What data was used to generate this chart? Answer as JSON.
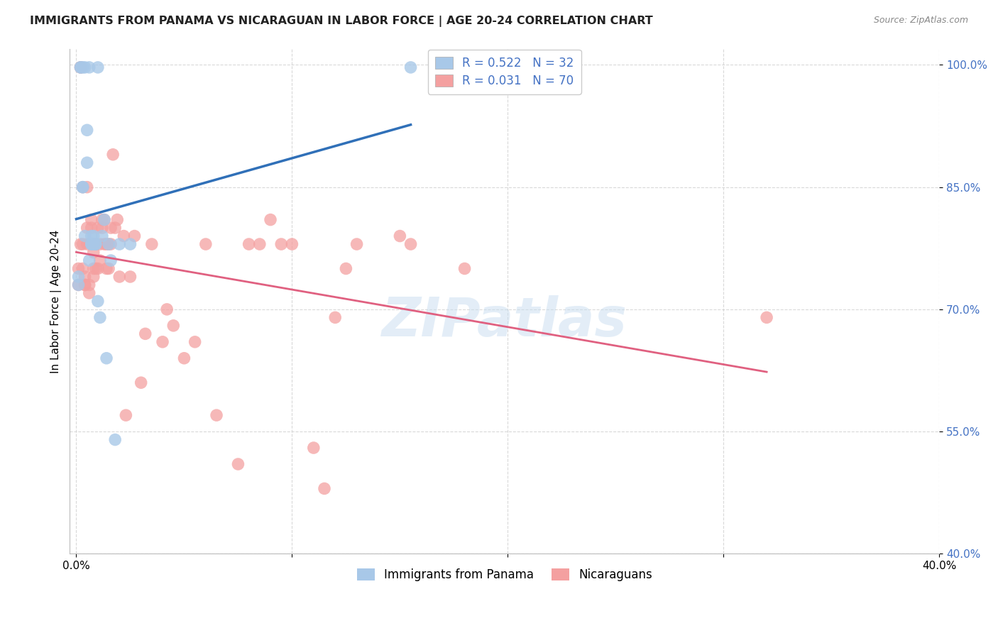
{
  "title": "IMMIGRANTS FROM PANAMA VS NICARAGUAN IN LABOR FORCE | AGE 20-24 CORRELATION CHART",
  "source": "Source: ZipAtlas.com",
  "ylabel": "In Labor Force | Age 20-24",
  "xlim": [
    -0.003,
    0.4
  ],
  "ylim": [
    0.4,
    1.02
  ],
  "yticks": [
    0.4,
    0.55,
    0.7,
    0.85,
    1.0
  ],
  "ytick_labels": [
    "40.0%",
    "55.0%",
    "70.0%",
    "85.0%",
    "100.0%"
  ],
  "xtick_positions": [
    0.0,
    0.1,
    0.2,
    0.3,
    0.4
  ],
  "xtick_labels": [
    "0.0%",
    "",
    "",
    "",
    "40.0%"
  ],
  "legend_panama": "Immigrants from Panama",
  "legend_nicaraguans": "Nicaraguans",
  "R_panama": 0.522,
  "N_panama": 32,
  "R_nicaraguan": 0.031,
  "N_nicaraguan": 70,
  "color_panama": "#a8c8e8",
  "color_nicaraguan": "#f4a0a0",
  "color_line_panama": "#3070b8",
  "color_line_nicaraguan": "#e06080",
  "watermark": "ZIPatlas",
  "panama_x": [
    0.001,
    0.001,
    0.002,
    0.002,
    0.003,
    0.003,
    0.003,
    0.004,
    0.004,
    0.005,
    0.005,
    0.006,
    0.006,
    0.007,
    0.007,
    0.007,
    0.008,
    0.008,
    0.009,
    0.009,
    0.01,
    0.01,
    0.011,
    0.012,
    0.013,
    0.014,
    0.015,
    0.016,
    0.018,
    0.02,
    0.025,
    0.155
  ],
  "panama_y": [
    0.73,
    0.74,
    0.997,
    0.997,
    0.85,
    0.85,
    0.997,
    0.997,
    0.79,
    0.92,
    0.88,
    0.76,
    0.997,
    0.79,
    0.78,
    0.78,
    0.79,
    0.78,
    0.78,
    0.78,
    0.997,
    0.71,
    0.69,
    0.79,
    0.81,
    0.64,
    0.78,
    0.76,
    0.54,
    0.78,
    0.78,
    0.997
  ],
  "nicaraguan_x": [
    0.001,
    0.001,
    0.002,
    0.002,
    0.002,
    0.003,
    0.003,
    0.003,
    0.004,
    0.004,
    0.004,
    0.005,
    0.005,
    0.005,
    0.006,
    0.006,
    0.007,
    0.007,
    0.008,
    0.008,
    0.008,
    0.009,
    0.009,
    0.01,
    0.01,
    0.011,
    0.011,
    0.012,
    0.012,
    0.013,
    0.013,
    0.014,
    0.014,
    0.015,
    0.015,
    0.016,
    0.016,
    0.017,
    0.018,
    0.019,
    0.02,
    0.022,
    0.023,
    0.025,
    0.027,
    0.03,
    0.032,
    0.035,
    0.04,
    0.042,
    0.045,
    0.05,
    0.055,
    0.06,
    0.065,
    0.075,
    0.08,
    0.085,
    0.09,
    0.095,
    0.1,
    0.11,
    0.115,
    0.12,
    0.125,
    0.13,
    0.15,
    0.18,
    0.32,
    0.155
  ],
  "nicaraguan_y": [
    0.73,
    0.75,
    0.997,
    0.997,
    0.78,
    0.85,
    0.78,
    0.75,
    0.74,
    0.73,
    0.73,
    0.85,
    0.8,
    0.78,
    0.73,
    0.72,
    0.81,
    0.8,
    0.77,
    0.75,
    0.74,
    0.78,
    0.75,
    0.8,
    0.75,
    0.78,
    0.76,
    0.81,
    0.8,
    0.81,
    0.78,
    0.78,
    0.75,
    0.78,
    0.75,
    0.8,
    0.78,
    0.89,
    0.8,
    0.81,
    0.74,
    0.79,
    0.57,
    0.74,
    0.79,
    0.61,
    0.67,
    0.78,
    0.66,
    0.7,
    0.68,
    0.64,
    0.66,
    0.78,
    0.57,
    0.51,
    0.78,
    0.78,
    0.81,
    0.78,
    0.78,
    0.53,
    0.48,
    0.69,
    0.75,
    0.78,
    0.79,
    0.75,
    0.69,
    0.78
  ]
}
